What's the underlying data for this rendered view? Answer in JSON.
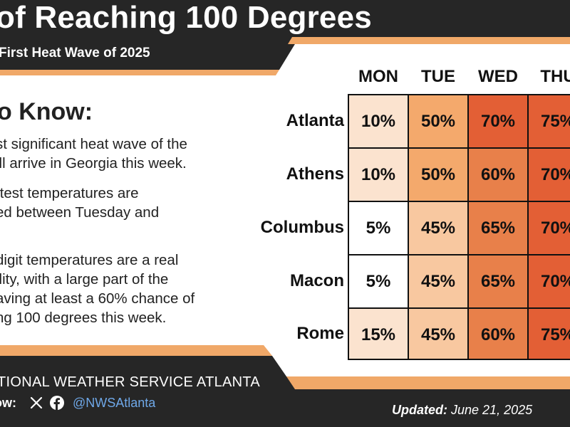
{
  "header": {
    "title": "of Reaching 100 Degrees",
    "subtitle": "First Heat Wave of 2025"
  },
  "know": {
    "heading": "o Know:",
    "bullets": [
      "st significant heat wave of the\nill arrive in Georgia this week.",
      "ttest temperatures are\ned between Tuesday and",
      "digit temperatures are a real\nility, with a large part of the\naving at least a 60% chance of\nng 100 degrees this week."
    ]
  },
  "chart_data": {
    "type": "heatmap",
    "columns": [
      "MON",
      "TUE",
      "WED",
      "THU"
    ],
    "rows": [
      "Atlanta",
      "Athens",
      "Columbus",
      "Macon",
      "Rome"
    ],
    "values": [
      [
        10,
        50,
        70,
        75
      ],
      [
        10,
        50,
        60,
        70
      ],
      [
        5,
        45,
        65,
        70
      ],
      [
        5,
        45,
        65,
        70
      ],
      [
        15,
        45,
        60,
        75
      ]
    ],
    "labels": [
      [
        "10%",
        "50%",
        "70%",
        "75%"
      ],
      [
        "10%",
        "50%",
        "60%",
        "70%"
      ],
      [
        "5%",
        "45%",
        "65%",
        "70%"
      ],
      [
        "5%",
        "45%",
        "65%",
        "70%"
      ],
      [
        "15%",
        "45%",
        "60%",
        "75%"
      ]
    ],
    "colors": {
      "5": "#ffffff",
      "10": "#fbe3cf",
      "15": "#fbe3cf",
      "45": "#f8c8a0",
      "50": "#f4a96c",
      "60": "#e8804a",
      "65": "#e8804a",
      "70": "#e35f35",
      "75": "#e35f35"
    }
  },
  "footer": {
    "agency": "TIONAL WEATHER SERVICE ATLANTA",
    "follow": "ow:",
    "handle": "@NWSAtlanta",
    "updated_label": "Updated:",
    "updated_date": "June 21, 2025"
  },
  "colors": {
    "dark": "#262626",
    "accent": "#f0a868",
    "link": "#6fa8e8"
  }
}
